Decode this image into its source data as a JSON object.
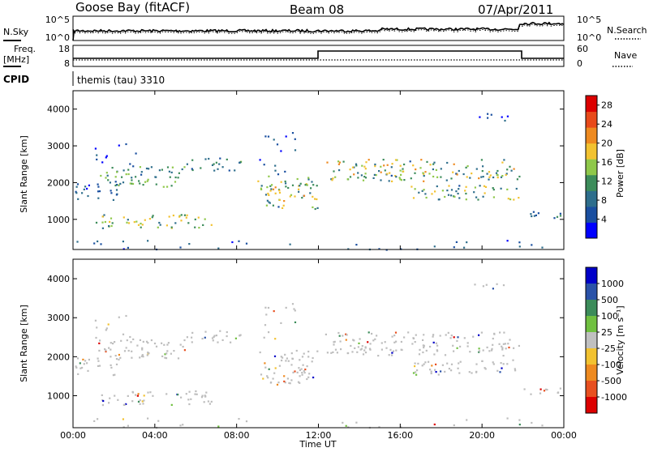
{
  "header": {
    "radar": "Goose Bay (fitACF)",
    "beam": "Beam 08",
    "date": "07/Apr/2011"
  },
  "params": {
    "nsky_label": "N.Sky",
    "nsearch_label": "N.Search",
    "freq_label": "Freq.",
    "freq_unit": "[MHz]",
    "nave_label": "Nave",
    "cpid_label": "CPID",
    "cpid_text": "themis (tau) 3310",
    "noise_ticks_left": [
      "10^5",
      "10^0"
    ],
    "noise_ticks_right": [
      "10^5",
      "10^0"
    ],
    "freq_ticks": [
      "18",
      "8"
    ],
    "nave_ticks": [
      "60",
      "0"
    ]
  },
  "colors": {
    "power": [
      "#0000ff",
      "#1a4fa0",
      "#2e6e8c",
      "#3c8c5a",
      "#8fc84a",
      "#f2c230",
      "#ee8a20",
      "#e84a1a",
      "#dc0000"
    ],
    "velocity": [
      "#0000c8",
      "#2a52a8",
      "#3c8c5a",
      "#70c040",
      "#c0c0c0",
      "#f2c230",
      "#ee8a20",
      "#e85020",
      "#dc0000"
    ],
    "scatter_gray": "#bdbdbd"
  },
  "chart_data": [
    {
      "type": "heatmap",
      "title": "Power",
      "xlabel": "Time UT",
      "ylabel": "Slant Range [km]",
      "x_ticks": [
        "00:00",
        "04:00",
        "08:00",
        "12:00",
        "16:00",
        "20:00",
        "00:00"
      ],
      "x_range_hours": [
        0,
        24
      ],
      "y_ticks": [
        1000,
        2000,
        3000,
        4000
      ],
      "y_range_km": [
        180,
        4500
      ],
      "colorbar_label": "Power [dB]",
      "colorbar_ticks": [
        4,
        8,
        12,
        16,
        20,
        24,
        28
      ],
      "colorbar_range": [
        0,
        30
      ]
    },
    {
      "type": "heatmap",
      "title": "Velocity",
      "xlabel": "Time UT",
      "ylabel": "Slant Range [km]",
      "x_ticks": [
        "00:00",
        "04:00",
        "08:00",
        "12:00",
        "16:00",
        "20:00",
        "00:00"
      ],
      "x_range_hours": [
        0,
        24
      ],
      "y_ticks": [
        1000,
        2000,
        3000,
        4000
      ],
      "y_range_km": [
        180,
        4500
      ],
      "colorbar_label": "Velocity [m s⁻¹]",
      "colorbar_ticks": [
        "1000",
        "500",
        "100",
        "25",
        "-25",
        "-100",
        "-500",
        "-1000"
      ]
    }
  ],
  "time_axis_label": "Time UT"
}
